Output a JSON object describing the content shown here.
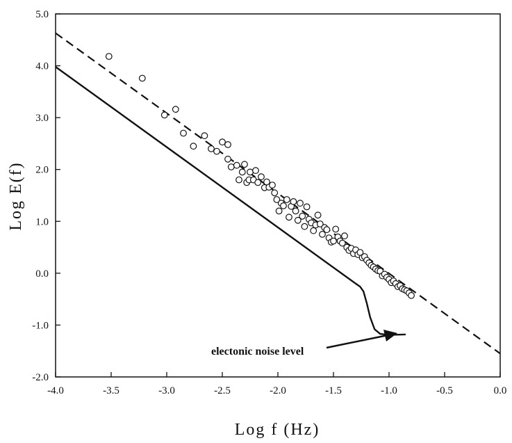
{
  "chart_data": {
    "type": "scatter",
    "xlabel": "Log f (Hz)",
    "ylabel": "Log E(f)",
    "xlim": [
      -4.0,
      0.0
    ],
    "ylim": [
      -2.0,
      5.0
    ],
    "x_ticks": [
      "-4.0",
      "-3.5",
      "-3.0",
      "-2.5",
      "-2.0",
      "-1.5",
      "-1.0",
      "-0.5",
      "0.0"
    ],
    "y_ticks": [
      "-2.0",
      "-1.0",
      "0.0",
      "1.0",
      "2.0",
      "3.0",
      "4.0",
      "5.0"
    ],
    "grid": false,
    "legend": "none",
    "annotation": "electonic noise level",
    "series": [
      {
        "style": "open-circle markers",
        "points": [
          [
            -3.52,
            4.18
          ],
          [
            -3.22,
            3.76
          ],
          [
            -3.02,
            3.05
          ],
          [
            -2.92,
            3.16
          ],
          [
            -2.85,
            2.7
          ],
          [
            -2.76,
            2.45
          ],
          [
            -2.66,
            2.65
          ],
          [
            -2.6,
            2.4
          ],
          [
            -2.55,
            2.35
          ],
          [
            -2.5,
            2.53
          ],
          [
            -2.45,
            2.48
          ],
          [
            -2.45,
            2.2
          ],
          [
            -2.42,
            2.05
          ],
          [
            -2.37,
            2.08
          ],
          [
            -2.35,
            1.8
          ],
          [
            -2.32,
            1.95
          ],
          [
            -2.3,
            2.1
          ],
          [
            -2.28,
            1.75
          ],
          [
            -2.26,
            1.8
          ],
          [
            -2.25,
            1.95
          ],
          [
            -2.22,
            1.8
          ],
          [
            -2.2,
            1.98
          ],
          [
            -2.18,
            1.75
          ],
          [
            -2.15,
            1.86
          ],
          [
            -2.12,
            1.65
          ],
          [
            -2.1,
            1.76
          ],
          [
            -2.08,
            1.66
          ],
          [
            -2.05,
            1.7
          ],
          [
            -2.03,
            1.55
          ],
          [
            -2.01,
            1.42
          ],
          [
            -1.99,
            1.2
          ],
          [
            -1.97,
            1.35
          ],
          [
            -1.95,
            1.3
          ],
          [
            -1.92,
            1.42
          ],
          [
            -1.9,
            1.08
          ],
          [
            -1.88,
            1.29
          ],
          [
            -1.86,
            1.38
          ],
          [
            -1.84,
            1.2
          ],
          [
            -1.82,
            1.02
          ],
          [
            -1.8,
            1.35
          ],
          [
            -1.78,
            1.1
          ],
          [
            -1.76,
            0.9
          ],
          [
            -1.74,
            1.28
          ],
          [
            -1.72,
            1.04
          ],
          [
            -1.7,
            0.97
          ],
          [
            -1.68,
            0.82
          ],
          [
            -1.66,
            0.93
          ],
          [
            -1.64,
            1.12
          ],
          [
            -1.62,
            0.95
          ],
          [
            -1.6,
            0.75
          ],
          [
            -1.58,
            0.88
          ],
          [
            -1.56,
            0.84
          ],
          [
            -1.54,
            0.68
          ],
          [
            -1.52,
            0.6
          ],
          [
            -1.5,
            0.62
          ],
          [
            -1.48,
            0.85
          ],
          [
            -1.46,
            0.7
          ],
          [
            -1.44,
            0.62
          ],
          [
            -1.42,
            0.58
          ],
          [
            -1.4,
            0.72
          ],
          [
            -1.38,
            0.5
          ],
          [
            -1.36,
            0.44
          ],
          [
            -1.34,
            0.48
          ],
          [
            -1.32,
            0.38
          ],
          [
            -1.3,
            0.45
          ],
          [
            -1.28,
            0.36
          ],
          [
            -1.26,
            0.4
          ],
          [
            -1.24,
            0.3
          ],
          [
            -1.22,
            0.32
          ],
          [
            -1.2,
            0.25
          ],
          [
            -1.18,
            0.2
          ],
          [
            -1.16,
            0.15
          ],
          [
            -1.14,
            0.12
          ],
          [
            -1.12,
            0.08
          ],
          [
            -1.1,
            0.05
          ],
          [
            -1.08,
            0.04
          ],
          [
            -1.06,
            -0.05
          ],
          [
            -1.04,
            -0.02
          ],
          [
            -1.02,
            -0.08
          ],
          [
            -1.0,
            -0.12
          ],
          [
            -0.98,
            -0.18
          ],
          [
            -0.96,
            -0.15
          ],
          [
            -0.94,
            -0.2
          ],
          [
            -0.92,
            -0.26
          ],
          [
            -0.9,
            -0.24
          ],
          [
            -0.88,
            -0.3
          ],
          [
            -0.86,
            -0.32
          ],
          [
            -0.84,
            -0.34
          ],
          [
            -0.82,
            -0.38
          ],
          [
            -0.8,
            -0.43
          ]
        ]
      },
      {
        "style": "dashed line",
        "points": [
          [
            -4.0,
            4.63
          ],
          [
            0.0,
            -1.55
          ]
        ]
      },
      {
        "style": "solid line",
        "points": [
          [
            -4.0,
            3.98
          ],
          [
            -1.3,
            -0.2
          ],
          [
            -1.26,
            -0.26
          ],
          [
            -1.23,
            -0.35
          ],
          [
            -1.2,
            -0.58
          ],
          [
            -1.17,
            -0.85
          ],
          [
            -1.13,
            -1.08
          ],
          [
            -1.08,
            -1.17
          ],
          [
            -1.0,
            -1.19
          ],
          [
            -0.85,
            -1.18
          ]
        ]
      }
    ]
  }
}
